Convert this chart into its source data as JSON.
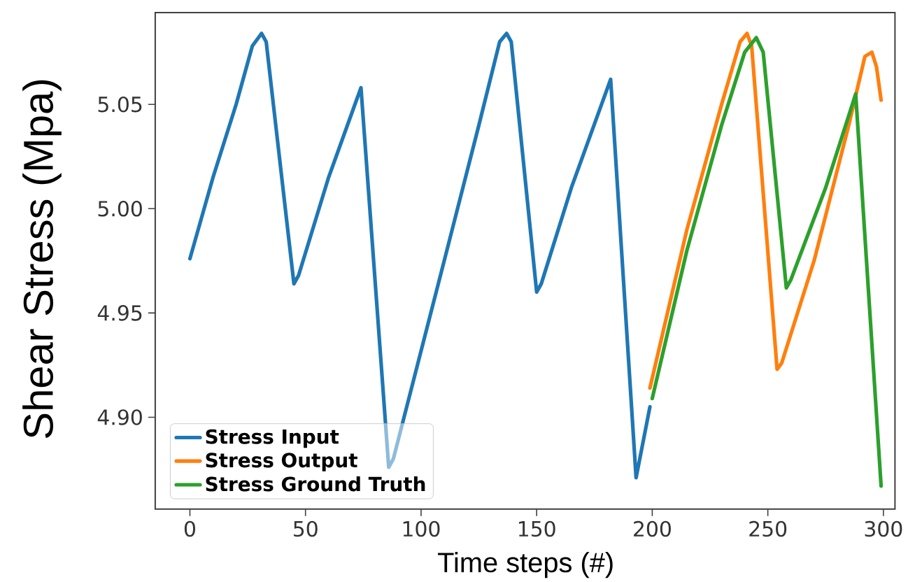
{
  "chart_data": {
    "type": "line",
    "xlabel": "Time steps (#)",
    "ylabel": "Shear Stress (Mpa)",
    "xlim": [
      -15,
      305
    ],
    "ylim": [
      4.856,
      5.094
    ],
    "xticks": [
      0,
      50,
      100,
      150,
      200,
      250,
      300
    ],
    "yticks": [
      {
        "value": 4.9,
        "label": "4.90"
      },
      {
        "value": 4.95,
        "label": "4.95"
      },
      {
        "value": 5.0,
        "label": "5.00"
      },
      {
        "value": 5.05,
        "label": "5.05"
      }
    ],
    "legend": "bottom left",
    "grid": false,
    "line_style": "solid",
    "series": [
      {
        "name": "Stress Input",
        "color": "#1f77b4",
        "x": [
          0,
          10,
          20,
          27,
          31,
          33,
          45,
          47,
          60,
          74,
          86,
          88,
          110,
          125,
          134,
          137,
          139,
          150,
          152,
          165,
          182,
          193,
          199
        ],
        "values": [
          4.976,
          5.015,
          5.05,
          5.078,
          5.084,
          5.08,
          4.964,
          4.968,
          5.015,
          5.058,
          4.876,
          4.88,
          4.975,
          5.04,
          5.08,
          5.084,
          5.08,
          4.96,
          4.964,
          5.01,
          5.062,
          4.871,
          4.905
        ]
      },
      {
        "name": "Stress Output",
        "color": "#ff7f0e",
        "x": [
          199,
          215,
          230,
          238,
          241,
          243,
          254,
          256,
          270,
          285,
          292,
          295,
          297,
          299
        ],
        "values": [
          4.914,
          4.99,
          5.05,
          5.08,
          5.084,
          5.078,
          4.923,
          4.926,
          4.975,
          5.04,
          5.073,
          5.075,
          5.068,
          5.052
        ]
      },
      {
        "name": "Stress Ground Truth",
        "color": "#2ca02c",
        "x": [
          200,
          215,
          230,
          240,
          245,
          248,
          258,
          260,
          275,
          288,
          299
        ],
        "values": [
          4.909,
          4.98,
          5.04,
          5.075,
          5.082,
          5.075,
          4.962,
          4.966,
          5.01,
          5.055,
          4.867
        ]
      }
    ]
  }
}
